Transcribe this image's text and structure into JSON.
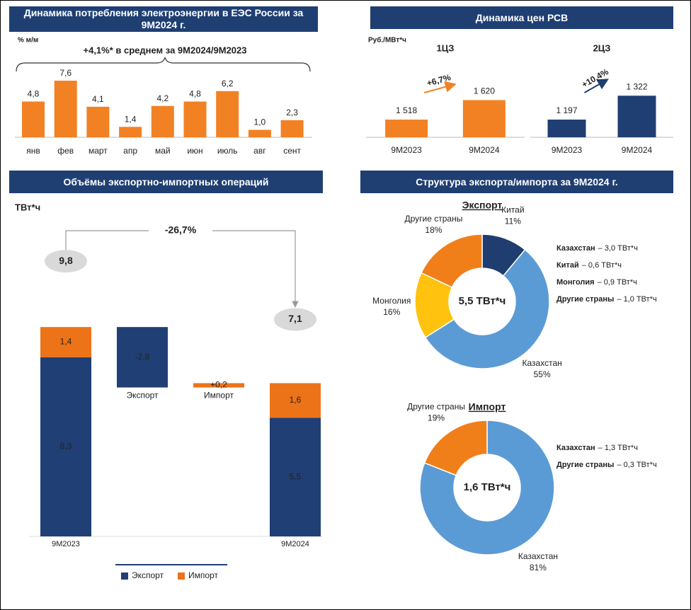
{
  "chart_data": [
    {
      "type": "bar",
      "title": "Динамика потребления электроэнергии в ЕЭС России за 9М2024 г.",
      "y_label": "% м/м",
      "annotation": "+4,1%* в среднем за 9М2024/9М2023",
      "categories": [
        "янв",
        "фев",
        "март",
        "апр",
        "май",
        "июн",
        "июль",
        "авг",
        "сент"
      ],
      "values": [
        4.8,
        7.6,
        4.1,
        1.4,
        4.2,
        4.8,
        6.2,
        1.0,
        2.3
      ],
      "value_labels": [
        "4,8",
        "7,6",
        "4,1",
        "1,4",
        "4,2",
        "4,8",
        "6,2",
        "1,0",
        "2,3"
      ],
      "color": "#f28124"
    },
    {
      "type": "bar-pair",
      "title": "Динамика цен РСВ",
      "y_label": "Руб./МВт*ч",
      "groups": [
        {
          "name": "1ЦЗ",
          "categories": [
            "9М2023",
            "9М2024"
          ],
          "values": [
            1518,
            1620
          ],
          "value_labels": [
            "1 518",
            "1 620"
          ],
          "change": "+6,7%",
          "color": "#f28124"
        },
        {
          "name": "2ЦЗ",
          "categories": [
            "9М2023",
            "9М2024"
          ],
          "values": [
            1197,
            1322
          ],
          "value_labels": [
            "1 197",
            "1 322"
          ],
          "change": "+10,4%",
          "color": "#1f3f73"
        }
      ]
    },
    {
      "type": "waterfall",
      "title": "Объёмы экспортно-импортных операций",
      "y_label": "ТВт*ч",
      "categories": [
        "9М2023",
        "Экспорт",
        "Импорт",
        "9М2024"
      ],
      "series": [
        {
          "name": "Экспорт",
          "color": "#203f74",
          "values": [
            8.3,
            -2.8,
            null,
            5.5
          ],
          "value_labels": [
            "8,3",
            "-2,8",
            null,
            "5,5"
          ]
        },
        {
          "name": "Импорт",
          "color": "#ed7318",
          "values": [
            1.4,
            null,
            0.2,
            1.6
          ],
          "value_labels": [
            "1,4",
            null,
            "+0,2",
            "1,6"
          ]
        }
      ],
      "totals": [
        9.8,
        7.1
      ],
      "total_labels": [
        "9,8",
        "7,1"
      ],
      "change": "-26,7%"
    },
    {
      "type": "donut",
      "title": "Структура экспорта/импорта за 9М2024 г.",
      "charts": [
        {
          "name": "Экспорт",
          "center": "5,5 ТВт*ч",
          "categories": [
            "Китай",
            "Казахстан",
            "Монголия",
            "Другие страны"
          ],
          "values": [
            11,
            55,
            16,
            18
          ],
          "value_labels": [
            "11%",
            "55%",
            "16%",
            "18%"
          ],
          "colors": [
            "#1f3d6e",
            "#5b9bd5",
            "#ffc20e",
            "#f07f1a"
          ],
          "notes": [
            {
              "label": "Казахстан",
              "text": "– 3,0 ТВт*ч"
            },
            {
              "label": "Китай",
              "text": "– 0,6 ТВт*ч"
            },
            {
              "label": "Монголия",
              "text": "– 0,9 ТВт*ч"
            },
            {
              "label": "Другие страны",
              "text": "– 1,0 ТВт*ч"
            }
          ]
        },
        {
          "name": "Импорт",
          "center": "1,6 ТВт*ч",
          "categories": [
            "Казахстан",
            "Другие страны"
          ],
          "values": [
            81,
            19
          ],
          "value_labels": [
            "81%",
            "19%"
          ],
          "colors": [
            "#5b9bd5",
            "#f07f1a"
          ],
          "notes": [
            {
              "label": "Казахстан",
              "text": "– 1,3 ТВт*ч"
            },
            {
              "label": "Другие страны",
              "text": "– 0,3 ТВт*ч"
            }
          ]
        }
      ]
    }
  ]
}
